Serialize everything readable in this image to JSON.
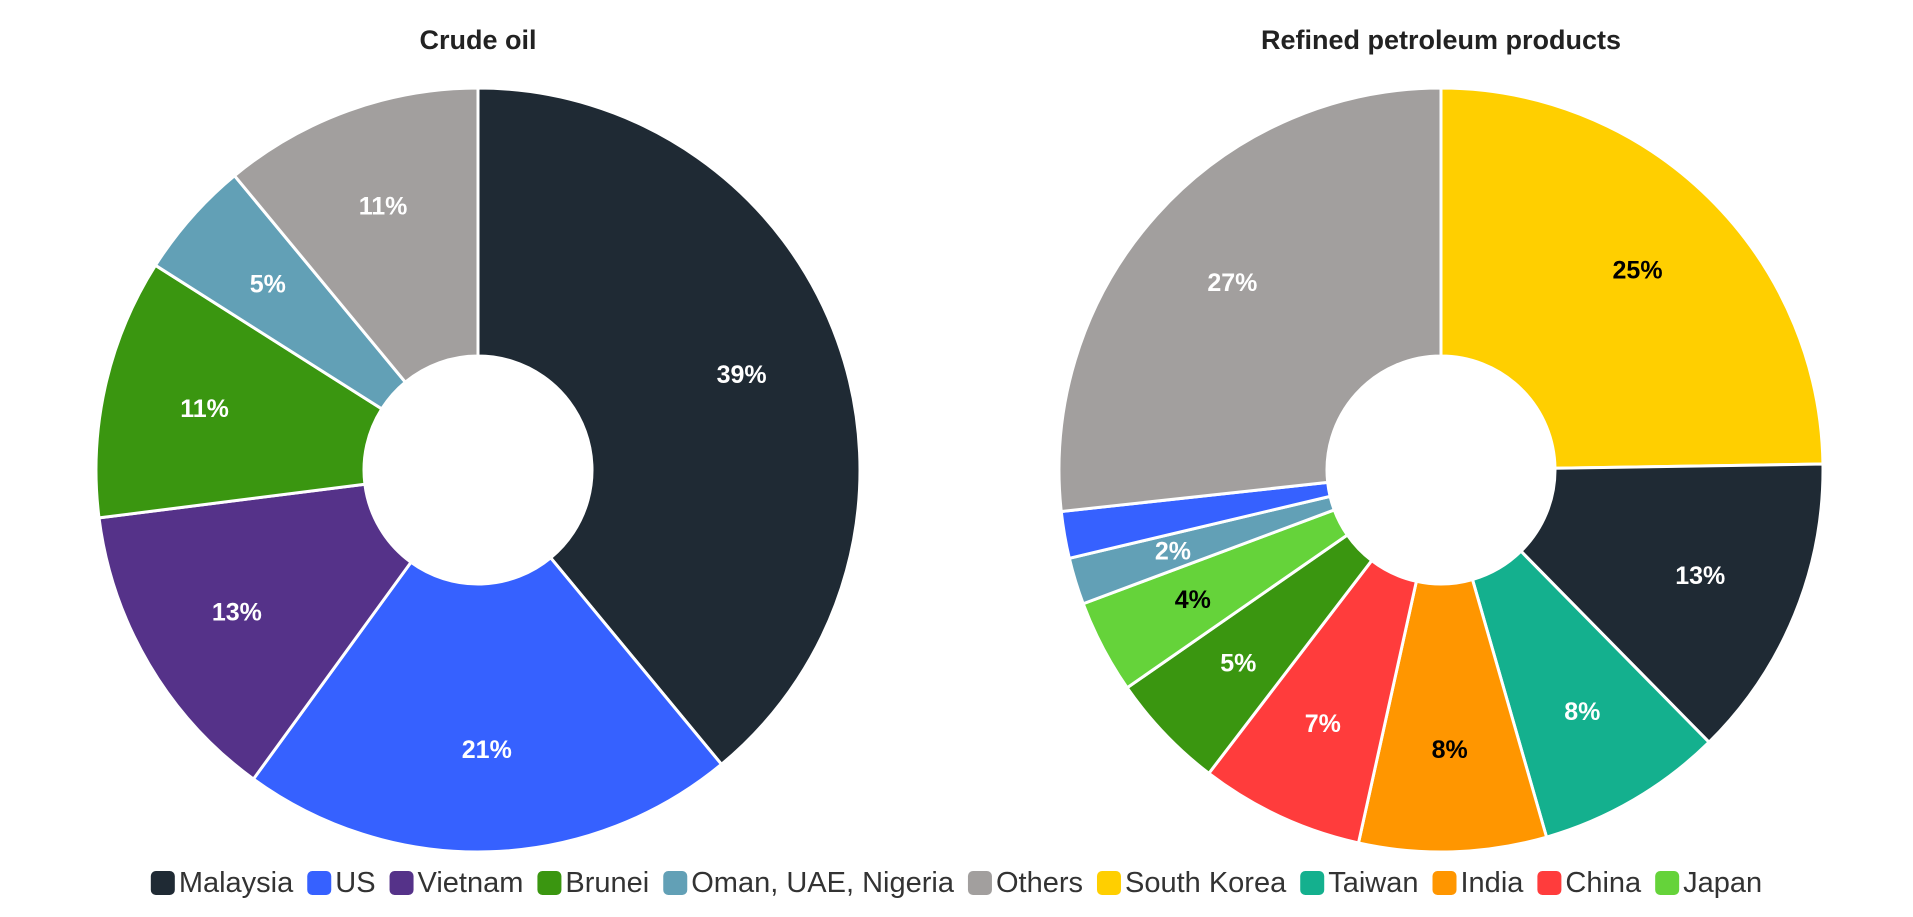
{
  "legend": [
    {
      "name": "Malaysia",
      "color": "#1f2a34"
    },
    {
      "name": "US",
      "color": "#3661ff"
    },
    {
      "name": "Vietnam",
      "color": "#553289"
    },
    {
      "name": "Brunei",
      "color": "#3a9610"
    },
    {
      "name": "Oman, UAE, Nigeria",
      "color": "#62a0b6"
    },
    {
      "name": "Others",
      "color": "#a29f9e"
    },
    {
      "name": "South Korea",
      "color": "#ffcf00"
    },
    {
      "name": "Taiwan",
      "color": "#14b08e"
    },
    {
      "name": "India",
      "color": "#ff9600"
    },
    {
      "name": "China",
      "color": "#ff3c3c"
    },
    {
      "name": "Japan",
      "color": "#65d33a"
    }
  ],
  "chart_data": [
    {
      "type": "pie",
      "title": "Crude oil",
      "donut": true,
      "slices": [
        {
          "name": "Malaysia",
          "value": 39,
          "label": "39%",
          "color": "#1f2a34",
          "label_color": "#ffffff"
        },
        {
          "name": "US",
          "value": 21,
          "label": "21%",
          "color": "#3661ff",
          "label_color": "#ffffff"
        },
        {
          "name": "Vietnam",
          "value": 13,
          "label": "13%",
          "color": "#553289",
          "label_color": "#ffffff"
        },
        {
          "name": "Brunei",
          "value": 11,
          "label": "11%",
          "color": "#3a9610",
          "label_color": "#ffffff"
        },
        {
          "name": "Oman, UAE, Nigeria",
          "value": 5,
          "label": "5%",
          "color": "#62a0b6",
          "label_color": "#ffffff"
        },
        {
          "name": "Others",
          "value": 11,
          "label": "11%",
          "color": "#a29f9e",
          "label_color": "#ffffff"
        }
      ]
    },
    {
      "type": "pie",
      "title": "Refined petroleum products",
      "donut": true,
      "slices": [
        {
          "name": "South Korea",
          "value": 25,
          "label": "25%",
          "color": "#ffcf00",
          "label_color": "#000000"
        },
        {
          "name": "Malaysia",
          "value": 13,
          "label": "13%",
          "color": "#1f2a34",
          "label_color": "#ffffff"
        },
        {
          "name": "Taiwan",
          "value": 8,
          "label": "8%",
          "color": "#14b08e",
          "label_color": "#ffffff"
        },
        {
          "name": "India",
          "value": 8,
          "label": "8%",
          "color": "#ff9600",
          "label_color": "#000000"
        },
        {
          "name": "China",
          "value": 7,
          "label": "7%",
          "color": "#ff3c3c",
          "label_color": "#ffffff"
        },
        {
          "name": "Brunei",
          "value": 5,
          "label": "5%",
          "color": "#3a9610",
          "label_color": "#ffffff"
        },
        {
          "name": "Japan",
          "value": 4,
          "label": "4%",
          "color": "#65d33a",
          "label_color": "#000000"
        },
        {
          "name": "Oman, UAE, Nigeria",
          "value": 2,
          "label": "2%",
          "color": "#62a0b6",
          "label_color": "#ffffff"
        },
        {
          "name": "US",
          "value": 2,
          "label": "",
          "color": "#3661ff",
          "label_color": "#ffffff"
        },
        {
          "name": "Others",
          "value": 27,
          "label": "27%",
          "color": "#a29f9e",
          "label_color": "#ffffff"
        }
      ]
    }
  ]
}
